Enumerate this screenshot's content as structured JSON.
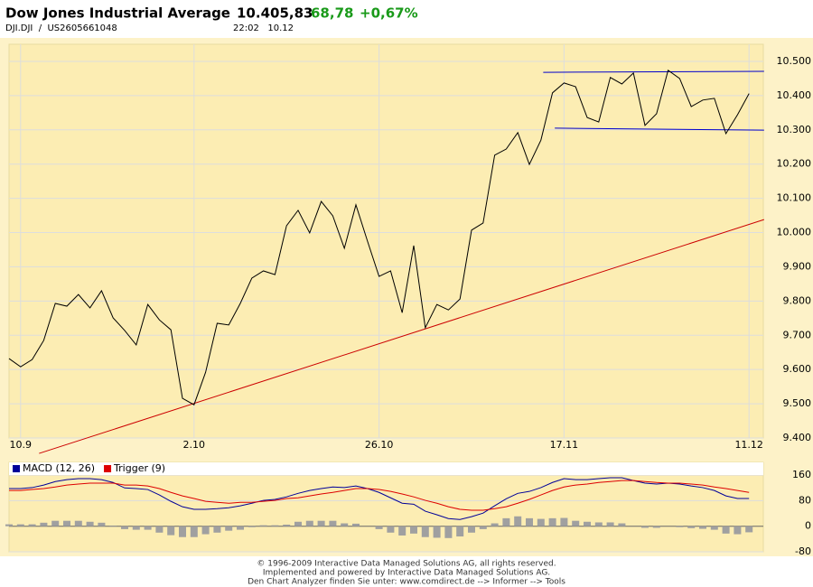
{
  "header": {
    "title": "Dow Jones Industrial Average",
    "price": "10.405,83",
    "change": "68,78",
    "change_pct": "+0,67%",
    "symbol": "DJI.DJI  /  US2605661048",
    "time": "22:02   10.12"
  },
  "chart_data": [
    {
      "type": "line",
      "color": "#000000",
      "grid": true,
      "categories": [
        null,
        "10.9",
        null,
        null,
        null,
        null,
        null,
        null,
        null,
        null,
        null,
        null,
        null,
        null,
        null,
        null,
        "2.10",
        null,
        null,
        null,
        null,
        null,
        null,
        null,
        null,
        null,
        null,
        null,
        null,
        null,
        null,
        null,
        "26.10",
        null,
        null,
        null,
        null,
        null,
        null,
        null,
        null,
        null,
        null,
        null,
        null,
        null,
        null,
        null,
        "17.11",
        null,
        null,
        null,
        null,
        null,
        null,
        null,
        null,
        null,
        null,
        null,
        null,
        null,
        null,
        null,
        "11.12"
      ],
      "values": [
        9632,
        9608,
        9629,
        9685,
        9793,
        9785,
        9819,
        9780,
        9830,
        9751,
        9714,
        9672,
        9790,
        9745,
        9716,
        9516,
        9497,
        9592,
        9735,
        9730,
        9793,
        9867,
        9888,
        9877,
        10020,
        10065,
        9999,
        10091,
        10049,
        9954,
        10081,
        9975,
        9872,
        9888,
        9766,
        9962,
        9722,
        9790,
        9774,
        9806,
        10007,
        10028,
        10226,
        10244,
        10292,
        10199,
        10270,
        10408,
        10437,
        10426,
        10336,
        10323,
        10453,
        10434,
        10466,
        10313,
        10347,
        10474,
        10450,
        10368,
        10387,
        10392,
        10289,
        10344,
        10406
      ],
      "trendlines": [
        {
          "color": "#cc0000",
          "x": [
            2.6,
            65.3
          ],
          "y": [
            9355,
            10038
          ]
        },
        {
          "color": "#0000cc",
          "x": [
            46.2,
            65.3
          ],
          "y": [
            10468,
            10471
          ]
        },
        {
          "color": "#0000cc",
          "x": [
            47.2,
            65.3
          ],
          "y": [
            10305,
            10299
          ]
        }
      ],
      "ylim": [
        9400,
        10550
      ],
      "yticks": [
        {
          "value": 9400,
          "label": "9.400"
        },
        {
          "value": 9500,
          "label": "9.500"
        },
        {
          "value": 9600,
          "label": "9.600"
        },
        {
          "value": 9700,
          "label": "9.700"
        },
        {
          "value": 9800,
          "label": "9.800"
        },
        {
          "value": 9900,
          "label": "9.900"
        },
        {
          "value": 10000,
          "label": "10.000"
        },
        {
          "value": 10100,
          "label": "10.100"
        },
        {
          "value": 10200,
          "label": "10.200"
        },
        {
          "value": 10300,
          "label": "10.300"
        },
        {
          "value": 10400,
          "label": "10.400"
        },
        {
          "value": 10500,
          "label": "10.500"
        }
      ]
    },
    {
      "type": "macd",
      "grid": true,
      "series": [
        {
          "name": "MACD (12, 26)",
          "color": "#000099",
          "values": [
            118,
            118,
            121,
            129,
            140,
            146,
            149,
            149,
            146,
            137,
            120,
            118,
            115,
            98,
            78,
            61,
            53,
            53,
            55,
            58,
            64,
            72,
            81,
            84,
            92,
            103,
            112,
            118,
            123,
            121,
            126,
            118,
            106,
            89,
            72,
            69,
            47,
            36,
            24,
            21,
            30,
            41,
            64,
            86,
            103,
            109,
            121,
            137,
            149,
            146,
            146,
            149,
            152,
            152,
            143,
            135,
            132,
            135,
            132,
            126,
            121,
            112,
            95,
            87,
            87
          ]
        },
        {
          "name": "Trigger (9)",
          "color": "#dd0000",
          "values": [
            112,
            112,
            115,
            118,
            123,
            129,
            132,
            135,
            135,
            135,
            129,
            129,
            126,
            118,
            106,
            95,
            87,
            78,
            75,
            72,
            75,
            75,
            78,
            81,
            87,
            89,
            95,
            101,
            106,
            112,
            118,
            118,
            115,
            109,
            101,
            92,
            81,
            72,
            61,
            53,
            50,
            50,
            55,
            61,
            72,
            84,
            98,
            112,
            123,
            129,
            132,
            137,
            140,
            143,
            143,
            140,
            137,
            135,
            135,
            132,
            129,
            123,
            118,
            112,
            106
          ]
        }
      ],
      "histogram": {
        "color": "#a0a0a0",
        "values": [
          6,
          6,
          6,
          11,
          17,
          17,
          17,
          14,
          11,
          2,
          -9,
          -11,
          -11,
          -20,
          -28,
          -34,
          -34,
          -25,
          -20,
          -14,
          -11,
          -3,
          3,
          3,
          5,
          14,
          17,
          17,
          17,
          9,
          8,
          0,
          -9,
          -20,
          -29,
          -23,
          -34,
          -36,
          -37,
          -32,
          -20,
          -9,
          9,
          25,
          31,
          25,
          23,
          25,
          26,
          17,
          14,
          12,
          12,
          9,
          0,
          -5,
          -5,
          0,
          -3,
          -6,
          -8,
          -11,
          -23,
          -25,
          -19
        ]
      },
      "ylim": [
        -80,
        200
      ],
      "yticks": [
        -80,
        0,
        80,
        160
      ]
    }
  ],
  "footer": [
    "© 1996-2009 Interactive Data Managed Solutions AG, all rights reserved.",
    "Implemented and powered by Interactive Data Managed Solutions AG.",
    "Den Chart Analyzer finden Sie unter: www.comdirect.de --> Informer --> Tools"
  ]
}
